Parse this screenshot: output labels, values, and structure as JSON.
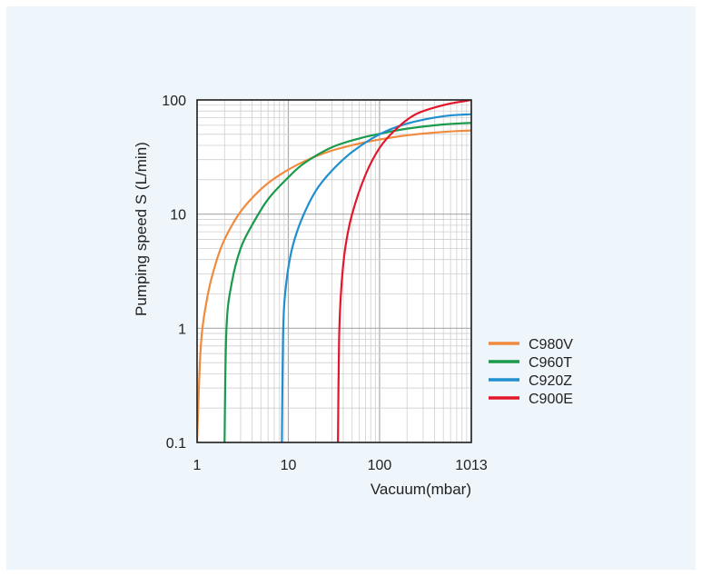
{
  "chart_data": {
    "type": "line",
    "title": "",
    "xlabel": "Vacuum(mbar)",
    "ylabel": "Pumping speed S (L/min)",
    "x_scale": "log",
    "y_scale": "log",
    "xlim": [
      1,
      1013
    ],
    "ylim": [
      0.1,
      100
    ],
    "x_ticks": [
      1,
      10,
      100,
      1013
    ],
    "x_tick_labels": [
      "1",
      "10",
      "100",
      "1013"
    ],
    "y_ticks": [
      0.1,
      1,
      10,
      100
    ],
    "y_tick_labels": [
      "0.1",
      "1",
      "10",
      "100"
    ],
    "grid": true,
    "legend_position": "right",
    "series": [
      {
        "name": "C980V",
        "color": "#f08a3c",
        "x": [
          1,
          1.1,
          1.3,
          1.6,
          2,
          3,
          5,
          8,
          15,
          30,
          60,
          100,
          200,
          500,
          1013
        ],
        "y": [
          0.1,
          0.7,
          1.9,
          3.7,
          6,
          10.5,
          16.5,
          22,
          29,
          36,
          41.5,
          45,
          49,
          52.5,
          54
        ]
      },
      {
        "name": "C960T",
        "color": "#1a9a4c",
        "x": [
          2,
          2.1,
          2.4,
          3,
          4,
          6,
          10,
          15,
          30,
          60,
          100,
          200,
          500,
          1013
        ],
        "y": [
          0.1,
          1,
          2.5,
          5,
          8,
          13.5,
          21,
          28,
          38.5,
          46,
          50.5,
          56,
          61,
          63
        ]
      },
      {
        "name": "C920Z",
        "color": "#1f8fd0",
        "x": [
          8.5,
          8.8,
          9.5,
          11,
          14,
          20,
          30,
          50,
          100,
          200,
          500,
          1013
        ],
        "y": [
          0.1,
          1,
          2.5,
          5,
          9,
          16,
          24,
          35,
          50,
          62,
          72,
          75
        ]
      },
      {
        "name": "C900E",
        "color": "#e3162b",
        "x": [
          35,
          36,
          38,
          42,
          50,
          70,
          100,
          150,
          250,
          500,
          1013
        ],
        "y": [
          0.1,
          0.8,
          2.2,
          5,
          10,
          22,
          38,
          55,
          75,
          90,
          100
        ]
      }
    ]
  }
}
